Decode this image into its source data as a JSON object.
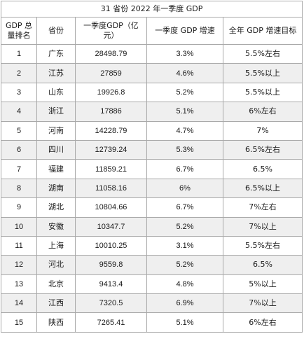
{
  "table": {
    "title": "31 省份 2022 年一季度 GDP",
    "columns": [
      "GDP 总量排名",
      "省份",
      "一季度GDP（亿元）",
      "一季度 GDP 增速",
      "全年 GDP 增速目标"
    ],
    "rows": [
      {
        "rank": "1",
        "province": "广东",
        "gdp": "28498.79",
        "growth": "3.3%",
        "target": "5.5%左右"
      },
      {
        "rank": "2",
        "province": "江苏",
        "gdp": "27859",
        "growth": "4.6%",
        "target": "5.5%以上"
      },
      {
        "rank": "3",
        "province": "山东",
        "gdp": "19926.8",
        "growth": "5.2%",
        "target": "5.5%以上"
      },
      {
        "rank": "4",
        "province": "浙江",
        "gdp": "17886",
        "growth": "5.1%",
        "target": "6%左右"
      },
      {
        "rank": "5",
        "province": "河南",
        "gdp": "14228.79",
        "growth": "4.7%",
        "target": "7%"
      },
      {
        "rank": "6",
        "province": "四川",
        "gdp": "12739.24",
        "growth": "5.3%",
        "target": "6.5%左右"
      },
      {
        "rank": "7",
        "province": "福建",
        "gdp": "11859.21",
        "growth": "6.7%",
        "target": "6.5%"
      },
      {
        "rank": "8",
        "province": "湖南",
        "gdp": "11058.16",
        "growth": "6%",
        "target": "6.5%以上"
      },
      {
        "rank": "9",
        "province": "湖北",
        "gdp": "10804.66",
        "growth": "6.7%",
        "target": "7%左右"
      },
      {
        "rank": "10",
        "province": "安徽",
        "gdp": "10347.7",
        "growth": "5.2%",
        "target": "7%以上"
      },
      {
        "rank": "11",
        "province": "上海",
        "gdp": "10010.25",
        "growth": "3.1%",
        "target": "5.5%左右"
      },
      {
        "rank": "12",
        "province": "河北",
        "gdp": "9559.8",
        "growth": "5.2%",
        "target": "6.5%"
      },
      {
        "rank": "13",
        "province": "北京",
        "gdp": "9413.4",
        "growth": "4.8%",
        "target": "5%以上"
      },
      {
        "rank": "14",
        "province": "江西",
        "gdp": "7320.5",
        "growth": "6.9%",
        "target": "7%以上"
      },
      {
        "rank": "15",
        "province": "陕西",
        "gdp": "7265.41",
        "growth": "5.1%",
        "target": "6%左右"
      }
    ]
  },
  "colors": {
    "border": "#a9a9a9",
    "alt_row_bg": "#efefef",
    "text": "#1a1a1a"
  }
}
